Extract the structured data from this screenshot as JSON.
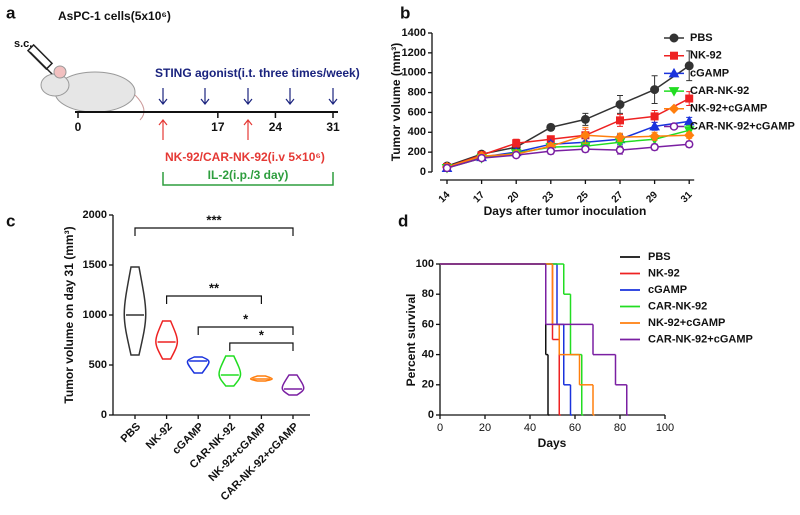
{
  "schematic": {
    "panel": "a",
    "cells": "AsPC-1 cells(5x10⁶)",
    "route": "s.c.",
    "agonist": "STING agonist(i.t. three times/week)",
    "days": [
      "0",
      "17",
      "24",
      "31"
    ],
    "nk": "NK-92/CAR-NK-92(i.v 5×10⁶)",
    "il2": "IL-2(i.p./3 day)"
  },
  "chart_data": [
    {
      "type": "line",
      "panel": "b",
      "xlabel": "Days after tumor inoculation",
      "ylabel": "Tumor volume (mm³)",
      "categories": [
        "14",
        "17",
        "20",
        "23",
        "25",
        "27",
        "29",
        "31"
      ],
      "ylim": [
        0,
        1400
      ],
      "yticks": [
        0,
        200,
        400,
        600,
        800,
        1000,
        1200,
        1400
      ],
      "series": [
        {
          "name": "PBS",
          "color": "#333333",
          "marker": "circle",
          "values": [
            60,
            180,
            250,
            450,
            530,
            680,
            830,
            1070
          ],
          "errors": [
            10,
            20,
            30,
            30,
            60,
            90,
            140,
            150
          ]
        },
        {
          "name": "NK-92",
          "color": "#ee2222",
          "marker": "square",
          "values": [
            50,
            170,
            290,
            330,
            370,
            520,
            560,
            740
          ],
          "errors": [
            10,
            20,
            40,
            30,
            60,
            60,
            60,
            70
          ]
        },
        {
          "name": "cGAMP",
          "color": "#1a33dd",
          "marker": "triangle",
          "values": [
            40,
            150,
            200,
            280,
            300,
            330,
            460,
            510
          ],
          "errors": [
            10,
            20,
            30,
            30,
            40,
            50,
            40,
            40
          ]
        },
        {
          "name": "CAR-NK-92",
          "color": "#22dd22",
          "marker": "triangle-down",
          "values": [
            40,
            140,
            190,
            250,
            260,
            300,
            330,
            420
          ],
          "errors": [
            10,
            20,
            30,
            30,
            40,
            40,
            50,
            50
          ]
        },
        {
          "name": "NK-92+cGAMP",
          "color": "#ff7f0e",
          "marker": "diamond",
          "values": [
            50,
            160,
            180,
            260,
            370,
            350,
            360,
            370
          ],
          "errors": [
            10,
            20,
            30,
            30,
            80,
            40,
            40,
            30
          ]
        },
        {
          "name": "CAR-NK-92+cGAMP",
          "color": "#7a1fa2",
          "marker": "open-circle",
          "values": [
            40,
            140,
            170,
            210,
            230,
            220,
            250,
            280
          ],
          "errors": [
            10,
            20,
            20,
            30,
            30,
            40,
            30,
            30
          ]
        }
      ]
    },
    {
      "type": "violin",
      "panel": "c",
      "ylabel": "Tumor volume on day 31 (mm³)",
      "categories": [
        "PBS",
        "NK-92",
        "cGAMP",
        "CAR-NK-92",
        "NK-92+cGAMP",
        "CAR-NK-92+cGAMP"
      ],
      "colors": [
        "#333333",
        "#ee2222",
        "#1a33dd",
        "#22dd22",
        "#ff7f0e",
        "#7a1fa2"
      ],
      "min": [
        600,
        560,
        420,
        290,
        340,
        200
      ],
      "median": [
        1000,
        730,
        540,
        400,
        360,
        260
      ],
      "max": [
        1480,
        940,
        580,
        590,
        390,
        400
      ],
      "ylim": [
        0,
        2000
      ],
      "yticks": [
        0,
        500,
        1000,
        1500,
        2000
      ],
      "annotations": [
        {
          "text": "***",
          "between": [
            "PBS",
            "CAR-NK-92+cGAMP"
          ]
        },
        {
          "text": "**",
          "between": [
            "NK-92",
            "NK-92+cGAMP"
          ]
        },
        {
          "text": "*",
          "between": [
            "cGAMP",
            "CAR-NK-92+cGAMP"
          ]
        },
        {
          "text": "*",
          "between": [
            "CAR-NK-92",
            "CAR-NK-92+cGAMP"
          ]
        }
      ]
    },
    {
      "type": "survival",
      "panel": "d",
      "xlabel": "Days",
      "ylabel": "Percent survival",
      "xlim": [
        0,
        100
      ],
      "xticks": [
        0,
        20,
        40,
        60,
        80,
        100
      ],
      "ylim": [
        0,
        100
      ],
      "yticks": [
        0,
        20,
        40,
        60,
        80,
        100
      ],
      "series": [
        {
          "name": "PBS",
          "color": "#111111",
          "x": [
            0,
            47,
            48
          ],
          "values": [
            100,
            40,
            0
          ]
        },
        {
          "name": "NK-92",
          "color": "#ee2222",
          "x": [
            0,
            50,
            53
          ],
          "values": [
            100,
            50,
            0
          ]
        },
        {
          "name": "cGAMP",
          "color": "#1a33dd",
          "x": [
            0,
            52,
            55,
            58
          ],
          "values": [
            100,
            60,
            20,
            0
          ]
        },
        {
          "name": "CAR-NK-92",
          "color": "#22dd22",
          "x": [
            0,
            55,
            58,
            63
          ],
          "values": [
            100,
            80,
            40,
            0
          ]
        },
        {
          "name": "NK-92+cGAMP",
          "color": "#ff7f0e",
          "x": [
            0,
            50,
            53,
            62,
            68
          ],
          "values": [
            100,
            60,
            40,
            20,
            0
          ]
        },
        {
          "name": "CAR-NK-92+cGAMP",
          "color": "#7a1fa2",
          "x": [
            0,
            47,
            68,
            78,
            83
          ],
          "values": [
            100,
            60,
            40,
            20,
            0
          ]
        }
      ]
    }
  ]
}
